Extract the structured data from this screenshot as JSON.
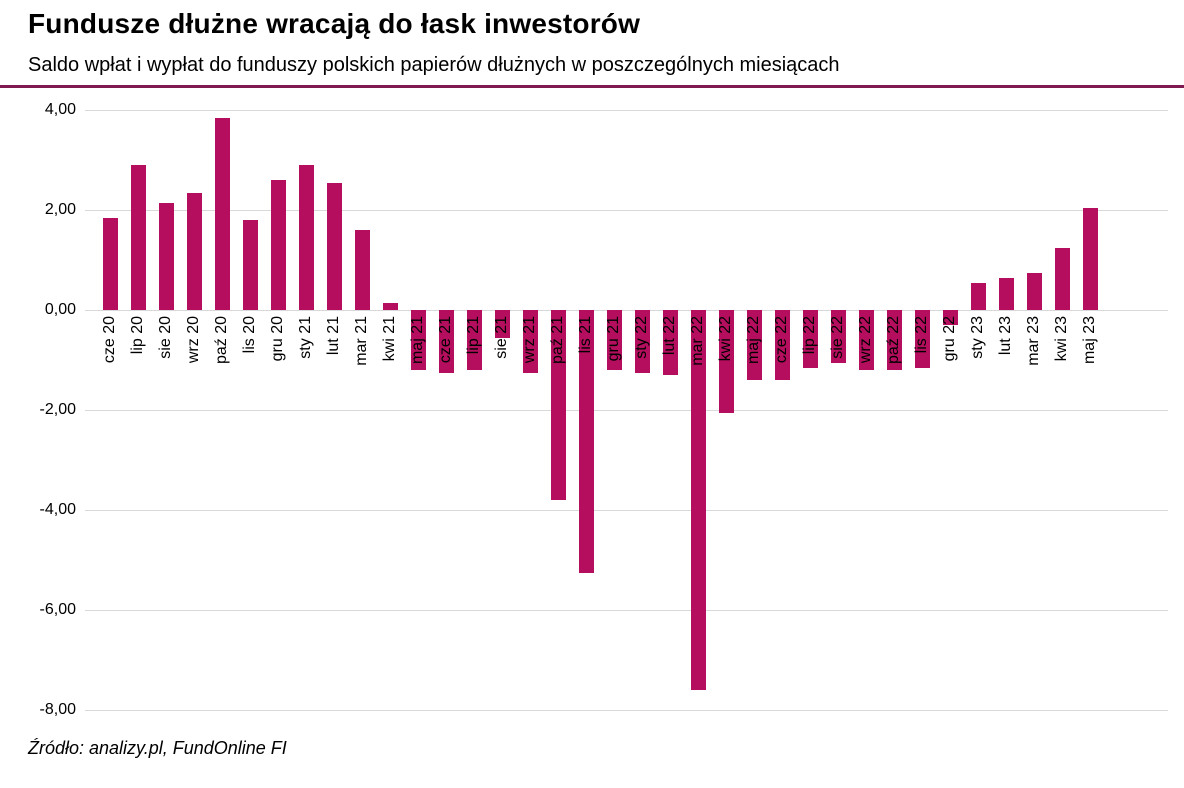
{
  "header": {
    "title": "Fundusze dłużne wracają do łask inwestorów",
    "subtitle": "Saldo wpłat i wypłat do funduszy polskich papierów dłużnych w poszczególnych miesiącach"
  },
  "footer": {
    "source": "Źródło: analizy.pl, FundOnline FI"
  },
  "colors": {
    "bar": "#B60E5E",
    "rule": "#7E1A50",
    "grid": "#D9D9D9",
    "text": "#000000",
    "background": "#FFFFFF"
  },
  "chart_data": {
    "type": "bar",
    "title": "Fundusze dłużne wracają do łask inwestorów",
    "subtitle": "Saldo wpłat i wypłat do funduszy polskich papierów dłużnych w poszczególnych miesiącach",
    "xlabel": "",
    "ylabel": "",
    "ylim": [
      -8.1,
      4.3
    ],
    "grid": true,
    "legend": false,
    "bar_color": "#B60E5E",
    "y_ticks": [
      {
        "value": 4,
        "label": "4,00"
      },
      {
        "value": 2,
        "label": "2,00"
      },
      {
        "value": 0,
        "label": "0,00"
      },
      {
        "value": -2,
        "label": "-2,00"
      },
      {
        "value": -4,
        "label": "-4,00"
      },
      {
        "value": -6,
        "label": "-6,00"
      },
      {
        "value": -8,
        "label": "-8,00"
      }
    ],
    "categories": [
      "cze 20",
      "lip 20",
      "sie 20",
      "wrz 20",
      "paź 20",
      "lis 20",
      "gru 20",
      "sty 21",
      "lut 21",
      "mar 21",
      "kwi 21",
      "maj 21",
      "cze 21",
      "lip 21",
      "sie 21",
      "wrz 21",
      "paź 21",
      "lis 21",
      "gru 21",
      "sty 22",
      "lut 22",
      "mar 22",
      "kwi 22",
      "maj 22",
      "cze 22",
      "lip 22",
      "sie 22",
      "wrz 22",
      "paź 22",
      "lis 22",
      "gru 22",
      "sty 23",
      "lut 23",
      "mar 23",
      "kwi 23",
      "maj 23"
    ],
    "values": [
      1.85,
      2.9,
      2.15,
      2.35,
      3.85,
      1.8,
      2.6,
      2.9,
      2.55,
      1.6,
      0.15,
      -1.2,
      -1.25,
      -1.2,
      -0.55,
      -1.25,
      -3.8,
      -5.25,
      -1.2,
      -1.25,
      -1.3,
      -7.6,
      -2.05,
      -1.4,
      -1.4,
      -1.15,
      -1.05,
      -1.2,
      -1.2,
      -1.15,
      -0.3,
      0.55,
      0.65,
      0.75,
      1.25,
      2.05
    ]
  }
}
